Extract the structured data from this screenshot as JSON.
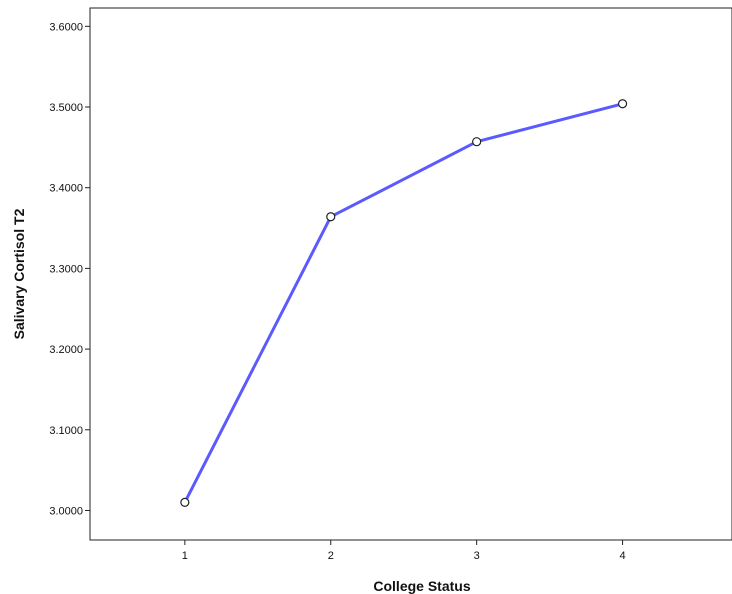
{
  "chart_data": {
    "type": "line",
    "xlabel": "College Status",
    "ylabel": "Salivary Cortisol T2",
    "x": [
      1,
      2,
      3,
      4
    ],
    "xlim": [
      0.35,
      4.75
    ],
    "ylim": [
      2.9634,
      3.6227
    ],
    "yticks": [
      3.0,
      3.1,
      3.2,
      3.3,
      3.4,
      3.5,
      3.6
    ],
    "ytick_labels": [
      "3.0000",
      "3.1000",
      "3.2000",
      "3.3000",
      "3.4000",
      "3.5000",
      "3.6000"
    ],
    "xtick_labels": [
      "1",
      "2",
      "3",
      "4"
    ],
    "series": [
      {
        "values": [
          3.01,
          3.364,
          3.457,
          3.504
        ],
        "color": "#5a5aff"
      }
    ],
    "marker": "open-circle",
    "grid": false
  }
}
